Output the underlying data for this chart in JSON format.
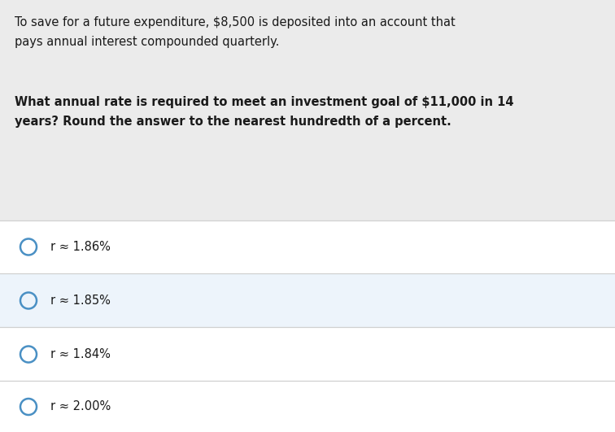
{
  "bg_color": "#ebebeb",
  "option_bg_default": "#ffffff",
  "option_bg_highlight": "#edf4fb",
  "separator_color": "#d0d0d0",
  "circle_color": "#4a90c4",
  "text_color": "#1a1a1a",
  "paragraph1": "To save for a future expenditure, $8,500 is deposited into an account that\npays annual interest compounded quarterly.",
  "paragraph2": "What annual rate is required to meet an investment goal of $11,000 in 14\nyears? Round the answer to the nearest hundredth of a percent.",
  "options": [
    "r ≈ 1.86%",
    "r ≈ 1.85%",
    "r ≈ 1.84%",
    "r ≈ 2.00%"
  ],
  "option_highlighted": 1,
  "fig_width": 7.56,
  "fig_height": 5.31,
  "dpi": 100
}
